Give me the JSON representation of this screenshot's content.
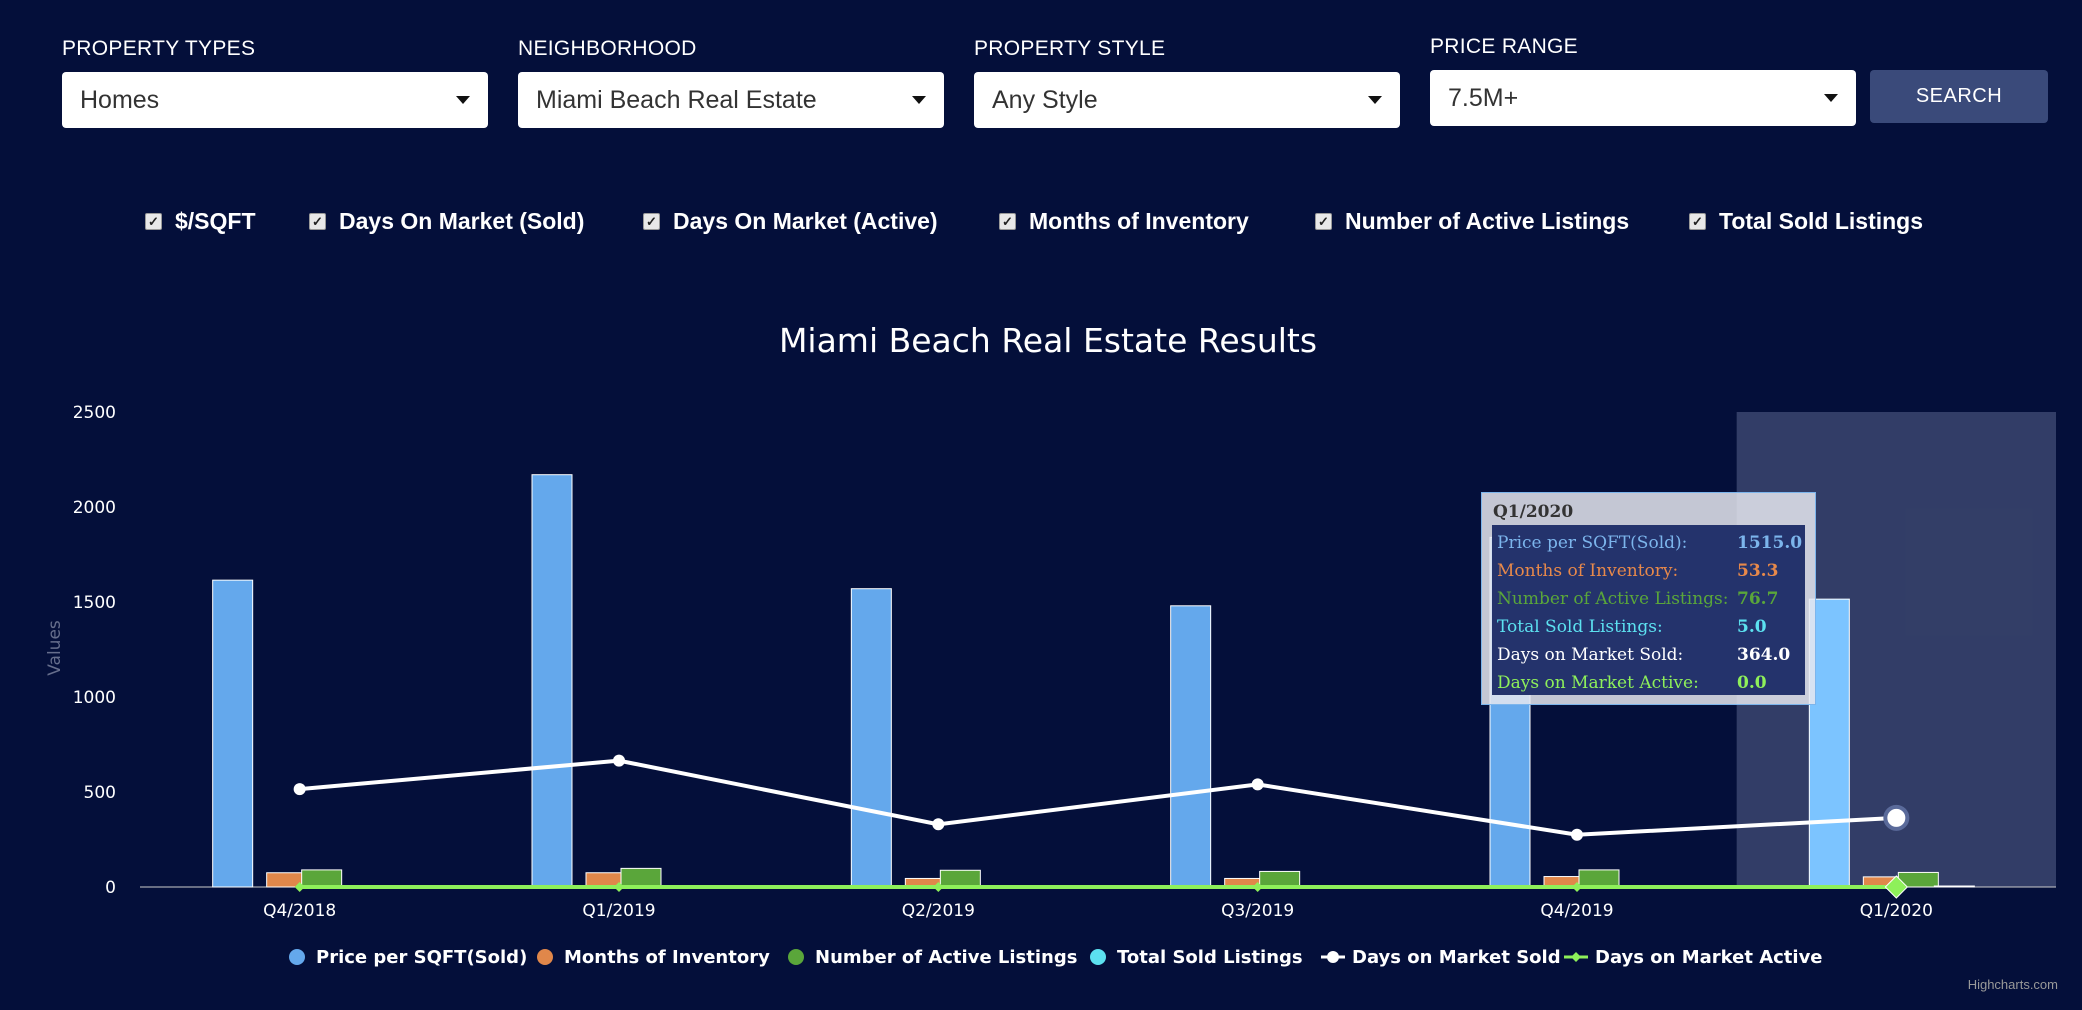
{
  "filters": {
    "property_types": {
      "label": "PROPERTY TYPES",
      "value": "Homes"
    },
    "neighborhood": {
      "label": "NEIGHBORHOOD",
      "value": "Miami Beach Real Estate"
    },
    "property_style": {
      "label": "PROPERTY STYLE",
      "value": "Any Style"
    },
    "price_range": {
      "label": "PRICE RANGE",
      "value": "7.5M+"
    },
    "search_label": "SEARCH"
  },
  "toggles": [
    {
      "label": "$/SQFT",
      "checked": true
    },
    {
      "label": "Days On Market (Sold)",
      "checked": true
    },
    {
      "label": "Days On Market (Active)",
      "checked": true
    },
    {
      "label": "Months of Inventory",
      "checked": true
    },
    {
      "label": "Number of Active Listings",
      "checked": true
    },
    {
      "label": "Total Sold Listings",
      "checked": true
    }
  ],
  "tooltip": {
    "title": "Q1/2020",
    "rows": [
      {
        "label": "Price per SQFT(Sold):",
        "value": "1515.0",
        "color": "#7cb5ec"
      },
      {
        "label": "Months of Inventory:",
        "value": "53.3",
        "color": "#e8894a"
      },
      {
        "label": "Number of Active Listings:",
        "value": "76.7",
        "color": "#5aa63a"
      },
      {
        "label": "Total Sold Listings:",
        "value": "5.0",
        "color": "#5ce1f0"
      },
      {
        "label": "Days on Market Sold:",
        "value": "364.0",
        "color": "#ffffff"
      },
      {
        "label": "Days on Market Active:",
        "value": "0.0",
        "color": "#8ef05a"
      }
    ]
  },
  "credit": "Highcharts.com",
  "chart_data": {
    "type": "bar",
    "title": "Miami Beach Real Estate Results",
    "ylabel": "Values",
    "xlabel": "",
    "ylim": [
      0,
      2500
    ],
    "yticks": [
      0,
      500,
      1000,
      1500,
      2000,
      2500
    ],
    "categories": [
      "Q4/2018",
      "Q1/2019",
      "Q2/2019",
      "Q3/2019",
      "Q4/2019",
      "Q1/2020"
    ],
    "highlighted_category": "Q1/2020",
    "series": [
      {
        "name": "Price per SQFT(Sold)",
        "type": "column",
        "color": "#64a8ec",
        "values": [
          1615,
          2170,
          1570,
          1480,
          1840,
          1515
        ]
      },
      {
        "name": "Months of Inventory",
        "type": "column",
        "color": "#e0874a",
        "values": [
          75,
          75,
          45,
          45,
          55,
          53.3
        ]
      },
      {
        "name": "Number of Active Listings",
        "type": "column",
        "color": "#5aa63a",
        "values": [
          90,
          98,
          88,
          82,
          90,
          76.7
        ]
      },
      {
        "name": "Total Sold Listings",
        "type": "column",
        "color": "#5ce1f0",
        "values": [
          3,
          4,
          3,
          3,
          4,
          5
        ]
      },
      {
        "name": "Days on Market Sold",
        "type": "line",
        "color": "#ffffff",
        "values": [
          515,
          665,
          330,
          540,
          275,
          364
        ]
      },
      {
        "name": "Days on Market Active",
        "type": "line",
        "color": "#8ef05a",
        "values": [
          0,
          0,
          0,
          0,
          0,
          0
        ]
      }
    ],
    "legend": "bottom"
  }
}
